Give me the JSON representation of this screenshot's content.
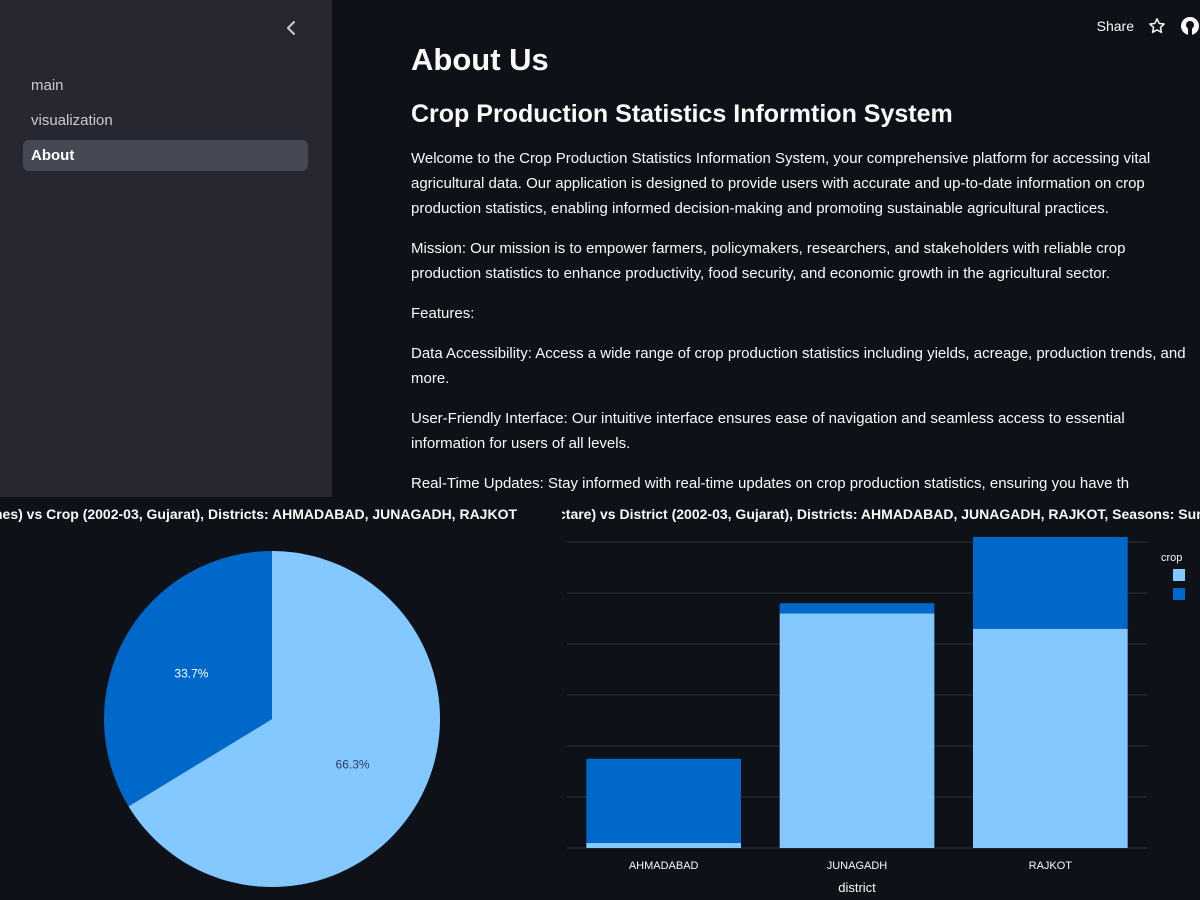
{
  "colors": {
    "light_blue": "#83c9ff",
    "dark_blue": "#0068c9",
    "sidebar_bg": "#262730",
    "app_bg": "#0e1117",
    "active_nav_bg": "#464853"
  },
  "icons": {
    "collapse": "chevron-left-icon",
    "star": "star-icon",
    "github": "github-icon"
  },
  "sidebar": {
    "items": [
      {
        "label": "main",
        "active": false
      },
      {
        "label": "visualization",
        "active": false
      },
      {
        "label": "About",
        "active": true
      }
    ]
  },
  "header": {
    "share_label": "Share"
  },
  "main": {
    "title": "About Us",
    "subtitle": "Crop Production Statistics Informtion System",
    "paragraphs": [
      "Welcome to the Crop Production Statistics Information System, your comprehensive platform for accessing vital agricultural data. Our application is designed to provide users with accurate and up-to-date information on crop production statistics, enabling informed decision-making and promoting sustainable agricultural practices.",
      "Mission: Our mission is to empower farmers, policymakers, researchers, and stakeholders with reliable crop production statistics to enhance productivity, food security, and economic growth in the agricultural sector.",
      "Features:",
      "Data Accessibility: Access a wide range of crop production statistics including yields, acreage, production trends, and more.",
      "User-Friendly Interface: Our intuitive interface ensures ease of navigation and seamless access to essential information for users of all levels.",
      "Real-Time Updates: Stay informed with real-time updates on crop production statistics, ensuring you have th"
    ]
  },
  "chart_data": [
    {
      "type": "pie",
      "title": "nes) vs Crop (2002-03, Gujarat), Districts: AHMADABAD, JUNAGADH, RAJKOT",
      "slices": [
        {
          "label": "66.3%",
          "value": 66.3,
          "color": "#83c9ff"
        },
        {
          "label": "33.7%",
          "value": 33.7,
          "color": "#0068c9"
        }
      ]
    },
    {
      "type": "bar",
      "stacked": true,
      "title": "ctare) vs District (2002-03, Gujarat), Districts: AHMADABAD, JUNAGADH, RAJKOT, Seasons: Sur",
      "xlabel": "district",
      "ylabel": "",
      "categories": [
        "AHMADABAD",
        "JUNAGADH",
        "RAJKOT"
      ],
      "legend_title": "crop",
      "legend_position": "top-right",
      "series": [
        {
          "color": "#83c9ff",
          "values": [
            0.1,
            4.6,
            4.3
          ]
        },
        {
          "color": "#0068c9",
          "values": [
            1.65,
            0.2,
            1.8
          ]
        }
      ],
      "ylim": [
        0,
        6
      ],
      "grid": true
    }
  ]
}
